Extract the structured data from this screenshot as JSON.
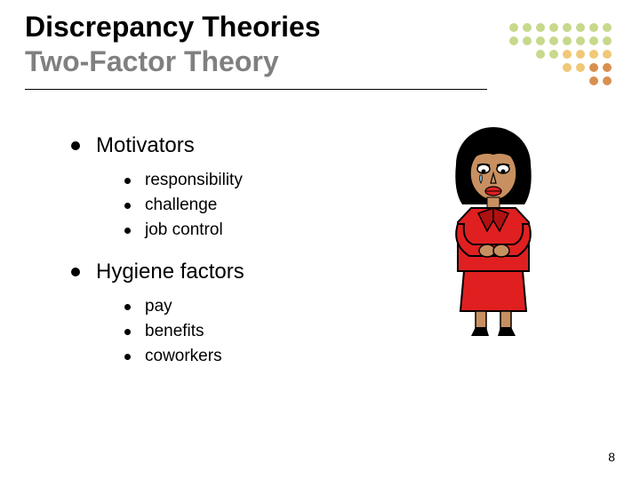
{
  "title_line1": "Discrepancy Theories",
  "title_line2": "Two-Factor Theory",
  "sections": [
    {
      "heading": "Motivators",
      "items": [
        "responsibility",
        "challenge",
        "job control"
      ]
    },
    {
      "heading": "Hygiene factors",
      "items": [
        "pay",
        "benefits",
        "coworkers"
      ]
    }
  ],
  "page_number": "8",
  "dot_grid": {
    "rows": 5,
    "cols": 8,
    "color_map": {
      "g": "#c7d98c",
      "y": "#f0c878",
      "o": "#d89050",
      "e": "transparent"
    },
    "pattern": [
      [
        "g",
        "g",
        "g",
        "g",
        "g",
        "g",
        "g",
        "g"
      ],
      [
        "g",
        "g",
        "g",
        "g",
        "g",
        "g",
        "g",
        "g"
      ],
      [
        "e",
        "e",
        "g",
        "g",
        "y",
        "y",
        "y",
        "y"
      ],
      [
        "e",
        "e",
        "e",
        "e",
        "y",
        "y",
        "o",
        "o"
      ],
      [
        "e",
        "e",
        "e",
        "e",
        "e",
        "e",
        "o",
        "o"
      ]
    ]
  },
  "illustration_colors": {
    "hair": "#000000",
    "skin": "#c89060",
    "suit": "#e02020",
    "lips": "#e02020",
    "eye": "#ffffff"
  }
}
